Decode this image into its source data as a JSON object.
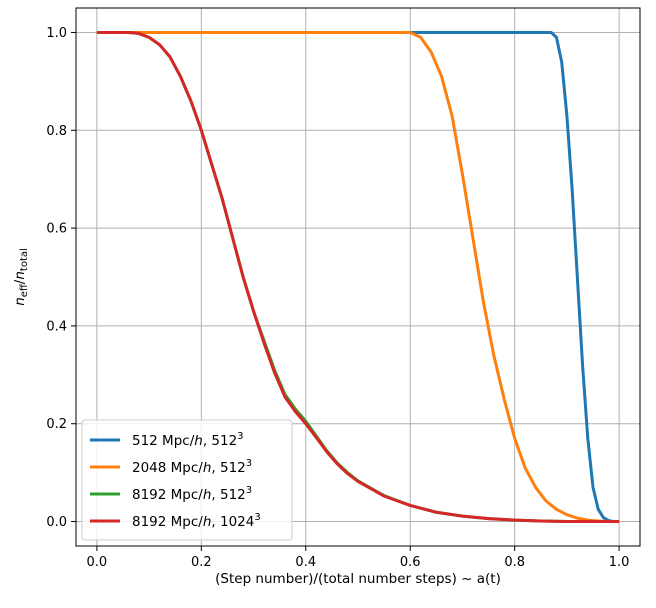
{
  "chart_data": {
    "type": "line",
    "xlabel": "(Step number)/(total number steps) ~ a(t)",
    "ylabel_parts": {
      "n1": "n",
      "sub1": "eff",
      "slash": "/",
      "n2": "n",
      "sub2": "total"
    },
    "xlim": [
      -0.04,
      1.04
    ],
    "ylim": [
      -0.05,
      1.05
    ],
    "xticks": [
      0.0,
      0.2,
      0.4,
      0.6,
      0.8,
      1.0
    ],
    "xtick_labels": [
      "0.0",
      "0.2",
      "0.4",
      "0.6",
      "0.8",
      "1.0"
    ],
    "yticks": [
      0.0,
      0.2,
      0.4,
      0.6,
      0.8,
      1.0
    ],
    "ytick_labels": [
      "0.0",
      "0.2",
      "0.4",
      "0.6",
      "0.8",
      "1.0"
    ],
    "grid": true,
    "legend_position": "lower-left",
    "series": [
      {
        "legend": {
          "box": "512 Mpc/",
          "italic": "h",
          "rest": ", 512",
          "sup": "3"
        },
        "color": "#1f77b4",
        "x": [
          0.0,
          0.87,
          0.88,
          0.89,
          0.9,
          0.91,
          0.92,
          0.93,
          0.94,
          0.95,
          0.96,
          0.97,
          0.98,
          0.99,
          1.0
        ],
        "y": [
          1.0,
          1.0,
          0.99,
          0.94,
          0.83,
          0.68,
          0.5,
          0.32,
          0.17,
          0.07,
          0.025,
          0.008,
          0.002,
          0.0,
          0.0
        ]
      },
      {
        "legend": {
          "box": "2048 Mpc/",
          "italic": "h",
          "rest": ", 512",
          "sup": "3"
        },
        "color": "#ff7f0e",
        "x": [
          0.0,
          0.6,
          0.62,
          0.64,
          0.66,
          0.68,
          0.7,
          0.72,
          0.74,
          0.76,
          0.78,
          0.8,
          0.82,
          0.84,
          0.86,
          0.88,
          0.9,
          0.92,
          0.94,
          0.96,
          0.98,
          1.0
        ],
        "y": [
          1.0,
          1.0,
          0.99,
          0.96,
          0.91,
          0.83,
          0.71,
          0.58,
          0.45,
          0.34,
          0.25,
          0.17,
          0.11,
          0.07,
          0.042,
          0.025,
          0.014,
          0.007,
          0.003,
          0.001,
          0.0,
          0.0
        ]
      },
      {
        "legend": {
          "box": "8192 Mpc/",
          "italic": "h",
          "rest": ", 512",
          "sup": "3"
        },
        "color": "#2ca02c",
        "x": [
          0.0,
          0.06,
          0.08,
          0.1,
          0.12,
          0.14,
          0.16,
          0.18,
          0.2,
          0.22,
          0.24,
          0.26,
          0.28,
          0.3,
          0.32,
          0.34,
          0.36,
          0.38,
          0.4,
          0.42,
          0.44,
          0.46,
          0.48,
          0.5,
          0.55,
          0.6,
          0.65,
          0.7,
          0.75,
          0.8,
          0.85,
          0.9,
          0.95,
          1.0
        ],
        "y": [
          1.0,
          1.0,
          0.998,
          0.99,
          0.975,
          0.95,
          0.91,
          0.86,
          0.8,
          0.73,
          0.66,
          0.58,
          0.5,
          0.43,
          0.37,
          0.31,
          0.26,
          0.23,
          0.205,
          0.175,
          0.145,
          0.12,
          0.1,
          0.083,
          0.053,
          0.033,
          0.019,
          0.011,
          0.006,
          0.003,
          0.001,
          0.0,
          0.0,
          0.0
        ]
      },
      {
        "legend": {
          "box": "8192 Mpc/",
          "italic": "h",
          "rest": ", 1024",
          "sup": "3"
        },
        "color": "#d62728",
        "x": [
          0.0,
          0.06,
          0.08,
          0.1,
          0.12,
          0.14,
          0.16,
          0.18,
          0.2,
          0.22,
          0.24,
          0.26,
          0.28,
          0.3,
          0.32,
          0.34,
          0.36,
          0.38,
          0.4,
          0.42,
          0.44,
          0.46,
          0.48,
          0.5,
          0.55,
          0.6,
          0.65,
          0.7,
          0.75,
          0.8,
          0.85,
          0.9,
          0.95,
          1.0
        ],
        "y": [
          1.0,
          1.0,
          0.998,
          0.99,
          0.975,
          0.95,
          0.91,
          0.86,
          0.8,
          0.73,
          0.66,
          0.58,
          0.5,
          0.43,
          0.365,
          0.305,
          0.255,
          0.225,
          0.2,
          0.172,
          0.143,
          0.118,
          0.098,
          0.082,
          0.052,
          0.033,
          0.019,
          0.011,
          0.006,
          0.003,
          0.001,
          0.0,
          0.0,
          0.0
        ]
      }
    ]
  }
}
